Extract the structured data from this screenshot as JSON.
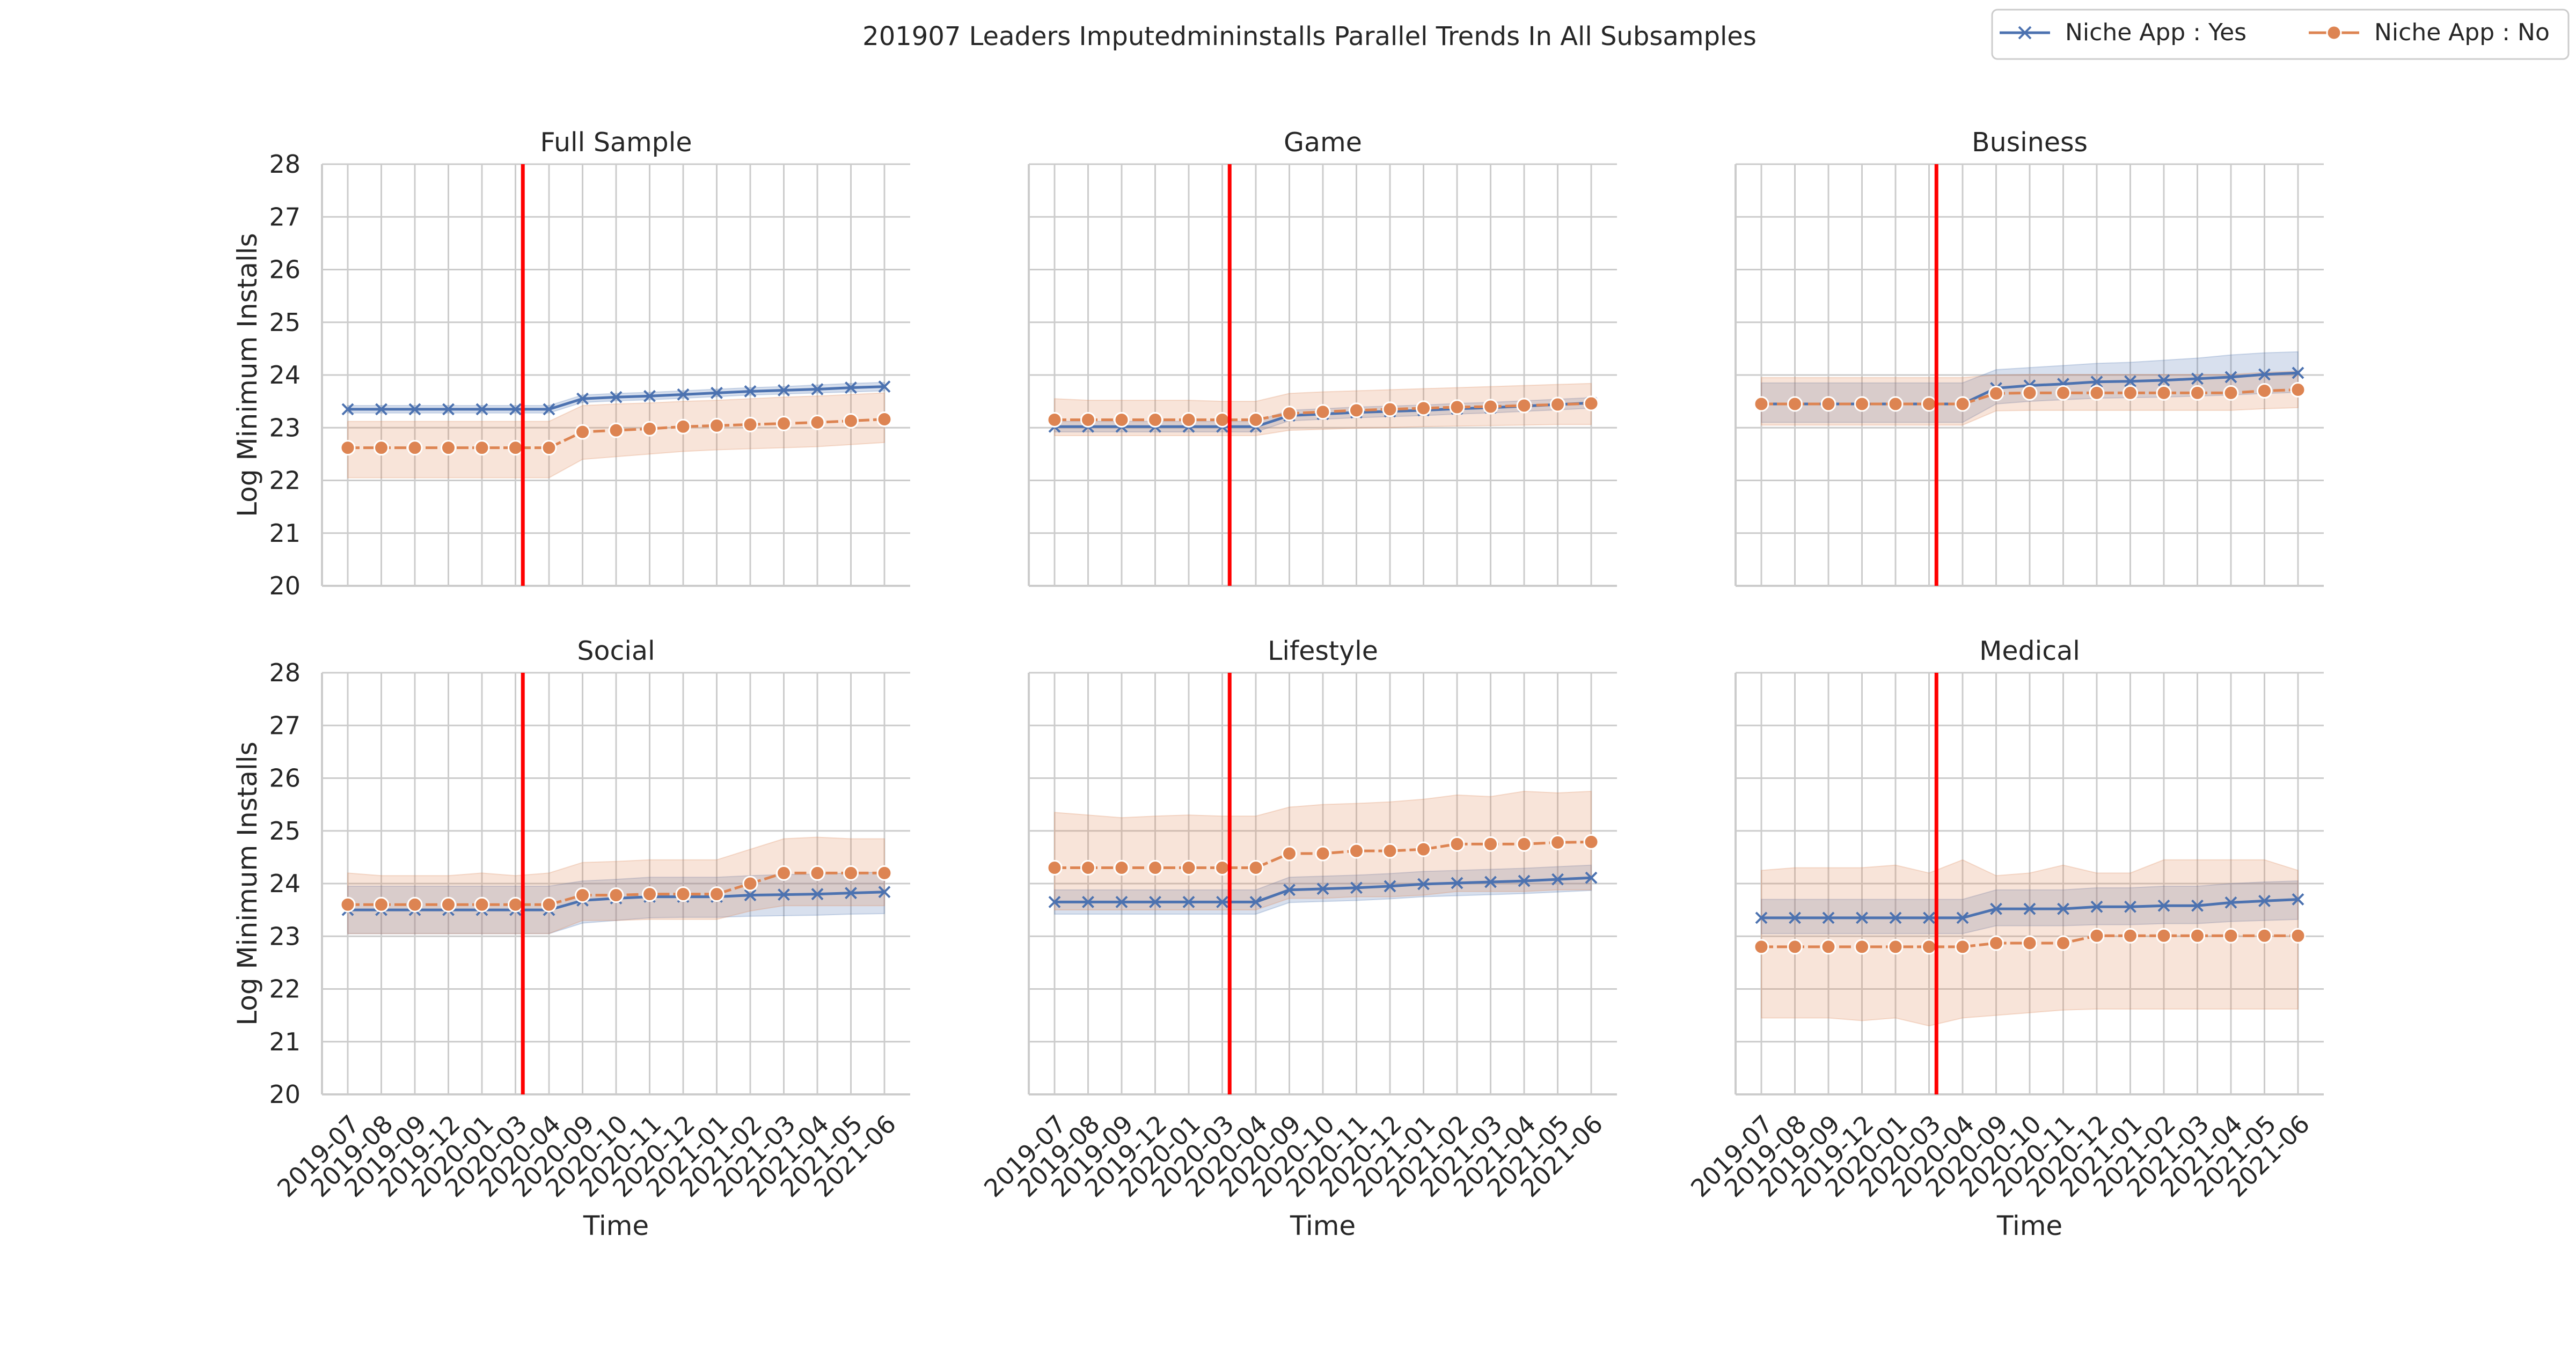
{
  "chart_data": {
    "type": "line",
    "title": "201907 Leaders Imputedmininstalls Parallel Trends In All Subsamples",
    "xlabel": "Time",
    "ylabel": "Log Minimum Installs",
    "ylim": [
      20,
      28
    ],
    "yticks": [
      20,
      21,
      22,
      23,
      24,
      25,
      26,
      27,
      28
    ],
    "grid": true,
    "legend_position": "top-right",
    "treatment_line": {
      "after_index": 5,
      "color": "#ff0000"
    },
    "categories": [
      "2019-07",
      "2019-08",
      "2019-09",
      "2019-12",
      "2020-01",
      "2020-03",
      "2020-04",
      "2020-09",
      "2020-10",
      "2020-11",
      "2020-12",
      "2021-01",
      "2021-02",
      "2021-03",
      "2021-04",
      "2021-05",
      "2021-06"
    ],
    "series_styles": [
      {
        "name": "Niche App : Yes",
        "color": "#4c72b0",
        "marker": "x"
      },
      {
        "name": "Niche App : No",
        "color": "#dd8452",
        "marker": "o"
      }
    ],
    "panels": [
      {
        "title": "Full Sample",
        "series": [
          {
            "name": "Niche App : Yes",
            "values": [
              23.35,
              23.35,
              23.35,
              23.35,
              23.35,
              23.35,
              23.35,
              23.55,
              23.58,
              23.6,
              23.63,
              23.66,
              23.69,
              23.71,
              23.73,
              23.76,
              23.78
            ],
            "ci_low": [
              23.28,
              23.28,
              23.28,
              23.28,
              23.28,
              23.28,
              23.28,
              23.48,
              23.51,
              23.53,
              23.56,
              23.59,
              23.62,
              23.64,
              23.66,
              23.68,
              23.7
            ],
            "ci_high": [
              23.42,
              23.42,
              23.42,
              23.42,
              23.42,
              23.42,
              23.42,
              23.62,
              23.65,
              23.67,
              23.7,
              23.73,
              23.76,
              23.78,
              23.81,
              23.84,
              23.86
            ]
          },
          {
            "name": "Niche App : No",
            "values": [
              22.62,
              22.62,
              22.62,
              22.62,
              22.62,
              22.62,
              22.62,
              22.92,
              22.95,
              22.98,
              23.02,
              23.04,
              23.06,
              23.08,
              23.1,
              23.13,
              23.16
            ],
            "ci_low": [
              22.05,
              22.05,
              22.05,
              22.05,
              22.05,
              22.05,
              22.05,
              22.4,
              22.45,
              22.5,
              22.55,
              22.58,
              22.6,
              22.62,
              22.64,
              22.68,
              22.72
            ],
            "ci_high": [
              23.12,
              23.12,
              23.12,
              23.12,
              23.12,
              23.12,
              23.12,
              23.42,
              23.45,
              23.47,
              23.5,
              23.52,
              23.55,
              23.58,
              23.6,
              23.63,
              23.66
            ]
          }
        ]
      },
      {
        "title": "Game",
        "series": [
          {
            "name": "Niche App : Yes",
            "values": [
              23.02,
              23.02,
              23.02,
              23.02,
              23.02,
              23.02,
              23.02,
              23.23,
              23.26,
              23.29,
              23.31,
              23.33,
              23.36,
              23.38,
              23.41,
              23.44,
              23.47
            ],
            "ci_low": [
              22.92,
              22.92,
              22.92,
              22.92,
              22.92,
              22.92,
              22.92,
              23.13,
              23.16,
              23.19,
              23.21,
              23.23,
              23.26,
              23.28,
              23.31,
              23.34,
              23.37
            ],
            "ci_high": [
              23.12,
              23.12,
              23.12,
              23.12,
              23.12,
              23.12,
              23.12,
              23.33,
              23.36,
              23.39,
              23.41,
              23.43,
              23.46,
              23.48,
              23.51,
              23.54,
              23.57
            ]
          },
          {
            "name": "Niche App : No",
            "values": [
              23.15,
              23.15,
              23.15,
              23.15,
              23.15,
              23.15,
              23.15,
              23.27,
              23.3,
              23.33,
              23.35,
              23.37,
              23.39,
              23.4,
              23.42,
              23.44,
              23.46
            ],
            "ci_low": [
              22.85,
              22.85,
              22.85,
              22.85,
              22.85,
              22.85,
              22.85,
              22.95,
              22.97,
              22.99,
              23.0,
              23.02,
              23.03,
              23.04,
              23.05,
              23.06,
              23.06
            ],
            "ci_high": [
              23.55,
              23.52,
              23.52,
              23.52,
              23.52,
              23.5,
              23.5,
              23.65,
              23.68,
              23.7,
              23.72,
              23.74,
              23.76,
              23.78,
              23.8,
              23.82,
              23.84
            ]
          }
        ]
      },
      {
        "title": "Business",
        "series": [
          {
            "name": "Niche App : Yes",
            "values": [
              23.45,
              23.45,
              23.45,
              23.45,
              23.45,
              23.45,
              23.45,
              23.75,
              23.8,
              23.83,
              23.87,
              23.88,
              23.9,
              23.93,
              23.96,
              24.01,
              24.04
            ],
            "ci_low": [
              23.1,
              23.1,
              23.1,
              23.1,
              23.1,
              23.1,
              23.1,
              23.45,
              23.5,
              23.53,
              23.56,
              23.57,
              23.58,
              23.6,
              23.62,
              23.65,
              23.67
            ],
            "ci_high": [
              23.85,
              23.85,
              23.85,
              23.85,
              23.85,
              23.85,
              23.85,
              24.1,
              24.14,
              24.18,
              24.22,
              24.24,
              24.28,
              24.32,
              24.38,
              24.42,
              24.44
            ]
          },
          {
            "name": "Niche App : No",
            "values": [
              23.45,
              23.45,
              23.45,
              23.45,
              23.45,
              23.45,
              23.45,
              23.65,
              23.66,
              23.66,
              23.66,
              23.66,
              23.66,
              23.66,
              23.66,
              23.7,
              23.72
            ],
            "ci_low": [
              23.05,
              23.05,
              23.05,
              23.05,
              23.05,
              23.05,
              23.05,
              23.32,
              23.33,
              23.33,
              23.33,
              23.33,
              23.33,
              23.33,
              23.33,
              23.36,
              23.38
            ],
            "ci_high": [
              23.95,
              23.95,
              23.95,
              23.95,
              23.95,
              23.95,
              23.95,
              24.0,
              24.01,
              24.01,
              24.01,
              24.01,
              24.01,
              24.01,
              24.01,
              24.05,
              24.07
            ]
          }
        ]
      },
      {
        "title": "Social",
        "series": [
          {
            "name": "Niche App : Yes",
            "values": [
              23.5,
              23.5,
              23.5,
              23.5,
              23.5,
              23.5,
              23.5,
              23.68,
              23.72,
              23.75,
              23.75,
              23.75,
              23.78,
              23.79,
              23.8,
              23.82,
              23.84
            ],
            "ci_low": [
              23.05,
              23.05,
              23.05,
              23.05,
              23.05,
              23.05,
              23.05,
              23.25,
              23.3,
              23.35,
              23.36,
              23.36,
              23.38,
              23.39,
              23.4,
              23.42,
              23.43
            ],
            "ci_high": [
              23.95,
              23.95,
              23.95,
              23.95,
              23.95,
              23.95,
              23.95,
              24.05,
              24.08,
              24.12,
              24.12,
              24.12,
              24.15,
              24.17,
              24.18,
              24.2,
              24.22
            ]
          },
          {
            "name": "Niche App : No",
            "values": [
              23.6,
              23.6,
              23.6,
              23.6,
              23.6,
              23.6,
              23.6,
              23.78,
              23.78,
              23.8,
              23.8,
              23.8,
              24.0,
              24.2,
              24.2,
              24.2,
              24.2
            ],
            "ci_low": [
              23.05,
              23.05,
              23.05,
              23.05,
              23.05,
              23.05,
              23.05,
              23.3,
              23.3,
              23.32,
              23.32,
              23.32,
              23.48,
              23.58,
              23.58,
              23.58,
              23.58
            ],
            "ci_high": [
              24.2,
              24.15,
              24.15,
              24.15,
              24.2,
              24.15,
              24.2,
              24.4,
              24.42,
              24.45,
              24.45,
              24.45,
              24.65,
              24.85,
              24.88,
              24.85,
              24.85
            ]
          }
        ]
      },
      {
        "title": "Lifestyle",
        "series": [
          {
            "name": "Niche App : Yes",
            "values": [
              23.65,
              23.65,
              23.65,
              23.65,
              23.65,
              23.65,
              23.65,
              23.88,
              23.9,
              23.92,
              23.95,
              23.99,
              24.01,
              24.03,
              24.05,
              24.08,
              24.11
            ],
            "ci_low": [
              23.42,
              23.42,
              23.42,
              23.42,
              23.42,
              23.42,
              23.42,
              23.64,
              23.66,
              23.68,
              23.71,
              23.75,
              23.77,
              23.79,
              23.81,
              23.84,
              23.87
            ],
            "ci_high": [
              23.88,
              23.88,
              23.88,
              23.88,
              23.88,
              23.88,
              23.88,
              24.12,
              24.14,
              24.16,
              24.19,
              24.23,
              24.25,
              24.27,
              24.29,
              24.32,
              24.35
            ]
          },
          {
            "name": "Niche App : No",
            "values": [
              24.3,
              24.3,
              24.3,
              24.3,
              24.3,
              24.3,
              24.3,
              24.57,
              24.57,
              24.62,
              24.62,
              24.65,
              24.75,
              24.75,
              24.75,
              24.78,
              24.79
            ],
            "ci_low": [
              23.5,
              23.5,
              23.5,
              23.5,
              23.5,
              23.5,
              23.5,
              23.72,
              23.72,
              23.75,
              23.75,
              23.78,
              23.85,
              23.85,
              23.85,
              23.88,
              23.88
            ],
            "ci_high": [
              25.35,
              25.3,
              25.25,
              25.28,
              25.3,
              25.28,
              25.28,
              25.45,
              25.5,
              25.52,
              25.55,
              25.6,
              25.68,
              25.65,
              25.75,
              25.72,
              25.75
            ]
          }
        ]
      },
      {
        "title": "Medical",
        "series": [
          {
            "name": "Niche App : Yes",
            "values": [
              23.35,
              23.35,
              23.35,
              23.35,
              23.35,
              23.35,
              23.35,
              23.52,
              23.52,
              23.52,
              23.56,
              23.56,
              23.58,
              23.58,
              23.64,
              23.67,
              23.7
            ],
            "ci_low": [
              23.05,
              23.05,
              23.05,
              23.05,
              23.05,
              23.05,
              23.05,
              23.2,
              23.2,
              23.2,
              23.22,
              23.22,
              23.24,
              23.24,
              23.28,
              23.3,
              23.32
            ],
            "ci_high": [
              23.7,
              23.7,
              23.7,
              23.7,
              23.7,
              23.7,
              23.7,
              23.88,
              23.88,
              23.88,
              23.92,
              23.92,
              23.95,
              23.95,
              24.0,
              24.03,
              24.05
            ]
          },
          {
            "name": "Niche App : No",
            "values": [
              22.8,
              22.8,
              22.8,
              22.8,
              22.8,
              22.8,
              22.8,
              22.87,
              22.87,
              22.87,
              23.01,
              23.01,
              23.01,
              23.01,
              23.01,
              23.01,
              23.01
            ],
            "ci_low": [
              21.45,
              21.45,
              21.45,
              21.4,
              21.45,
              21.3,
              21.45,
              21.5,
              21.55,
              21.6,
              21.62,
              21.62,
              21.62,
              21.62,
              21.62,
              21.62,
              21.62
            ],
            "ci_high": [
              24.25,
              24.3,
              24.3,
              24.3,
              24.35,
              24.2,
              24.45,
              24.15,
              24.2,
              24.35,
              24.2,
              24.2,
              24.45,
              24.45,
              24.45,
              24.45,
              24.25
            ]
          }
        ]
      }
    ]
  }
}
